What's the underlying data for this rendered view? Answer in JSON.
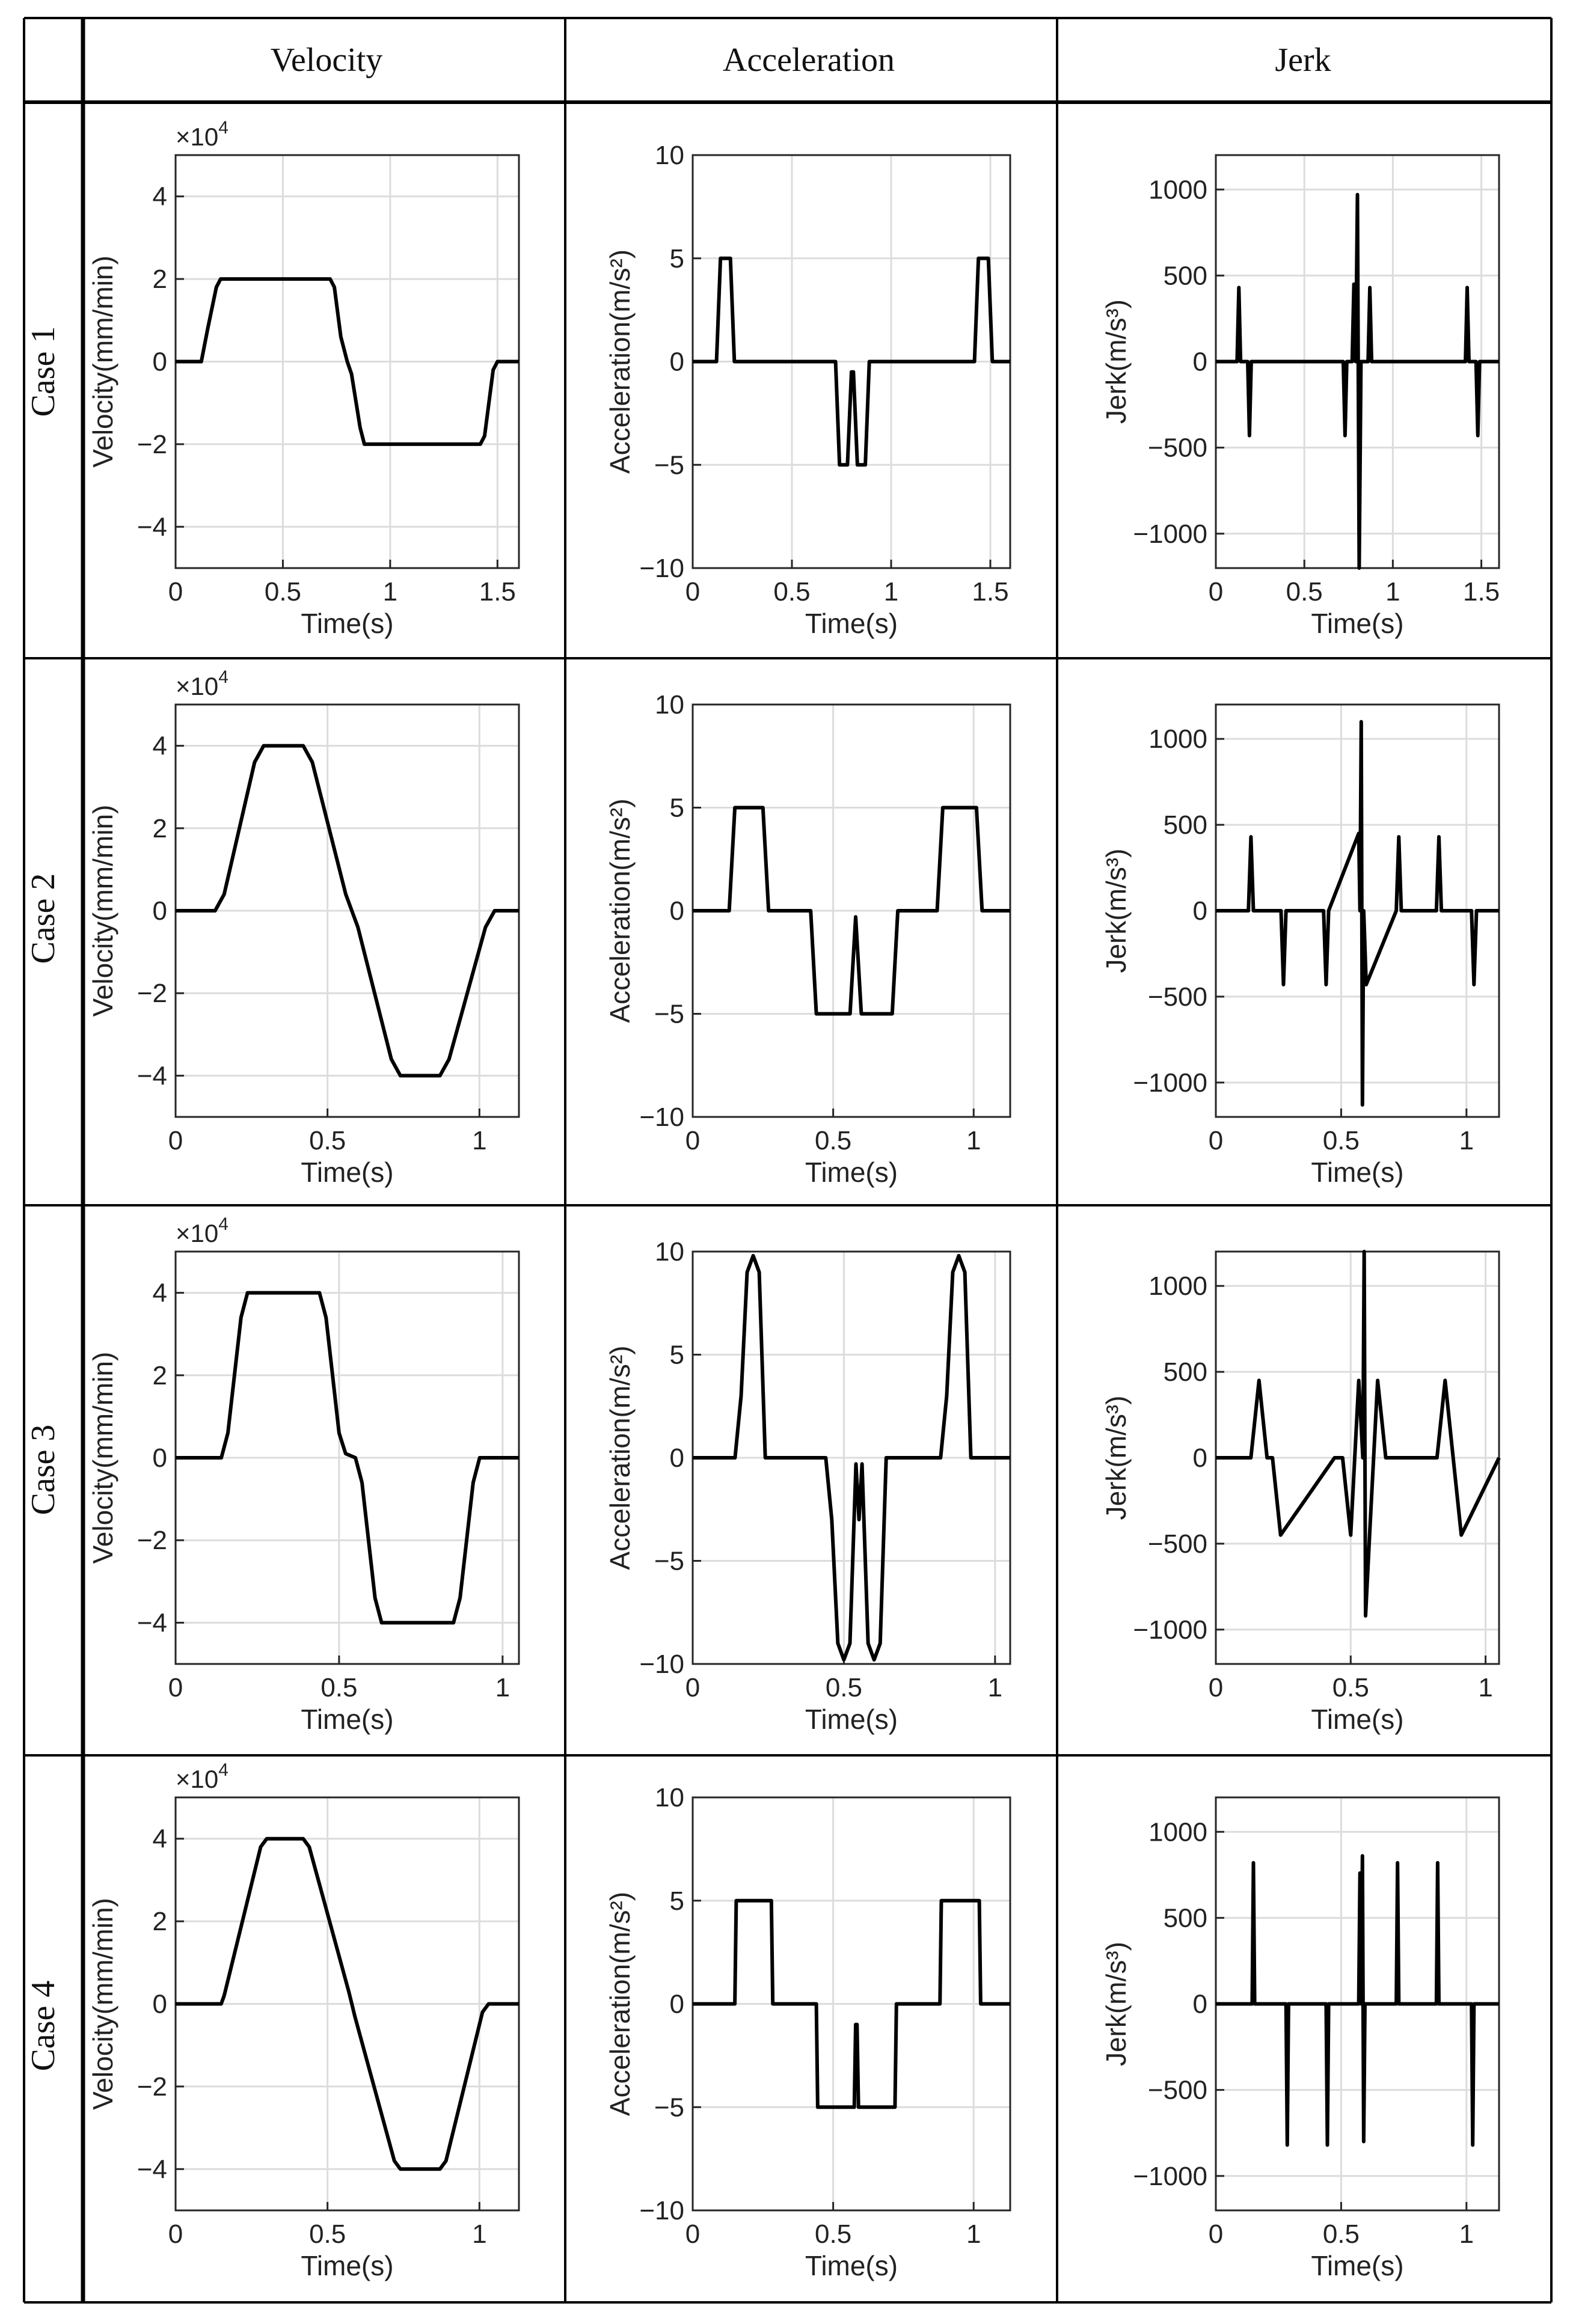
{
  "table": {
    "columns": [
      "Velocity",
      "Acceleration",
      "Jerk"
    ],
    "rows": [
      "Case 1",
      "Case 2",
      "Case 3",
      "Case 4"
    ]
  },
  "colors": {
    "line": "#000000",
    "grid": "#dcdcdc",
    "border": "#000000"
  },
  "chart_data": [
    {
      "id": "c1-vel",
      "type": "line",
      "case": "Case 1",
      "column": "Velocity",
      "xlabel": "Time(s)",
      "ylabel": "Velocity(mm/min)",
      "scale_note": "×10",
      "scale_exp": "4",
      "xlim": [
        0,
        1.6
      ],
      "xticks": [
        0,
        0.5,
        1,
        1.5
      ],
      "xtick_labels": [
        "0",
        "0.5",
        "1",
        "1.5"
      ],
      "ylim": [
        -5,
        5
      ],
      "yticks": [
        -4,
        -2,
        0,
        2,
        4
      ],
      "ytick_labels": [
        "−4",
        "−2",
        "0",
        "2",
        "4"
      ],
      "series": [
        {
          "name": "velocity",
          "x": [
            0,
            0.12,
            0.15,
            0.19,
            0.21,
            0.72,
            0.74,
            0.77,
            0.8,
            0.82,
            0.86,
            0.88,
            1.42,
            1.44,
            1.48,
            1.5,
            1.6
          ],
          "y": [
            0,
            0,
            0.8,
            1.8,
            2,
            2,
            1.8,
            0.6,
            0,
            -0.3,
            -1.6,
            -2,
            -2,
            -1.8,
            -0.2,
            0,
            0
          ]
        }
      ]
    },
    {
      "id": "c1-acc",
      "type": "line",
      "case": "Case 1",
      "column": "Acceleration",
      "xlabel": "Time(s)",
      "ylabel": "Acceleration(m/s²)",
      "xlim": [
        0,
        1.6
      ],
      "xticks": [
        0,
        0.5,
        1,
        1.5
      ],
      "xtick_labels": [
        "0",
        "0.5",
        "1",
        "1.5"
      ],
      "ylim": [
        -10,
        10
      ],
      "yticks": [
        -10,
        -5,
        0,
        5,
        10
      ],
      "ytick_labels": [
        "−10",
        "−5",
        "0",
        "5",
        "10"
      ],
      "series": [
        {
          "name": "acceleration",
          "x": [
            0,
            0.12,
            0.14,
            0.19,
            0.21,
            0.72,
            0.74,
            0.78,
            0.8,
            0.81,
            0.83,
            0.87,
            0.89,
            1.42,
            1.44,
            1.49,
            1.51,
            1.6
          ],
          "y": [
            0,
            0,
            5,
            5,
            0,
            0,
            -5,
            -5,
            -0.5,
            -0.5,
            -5,
            -5,
            0,
            0,
            5,
            5,
            0,
            0
          ]
        }
      ]
    },
    {
      "id": "c1-jerk",
      "type": "line",
      "case": "Case 1",
      "column": "Jerk",
      "xlabel": "Time(s)",
      "ylabel": "Jerk(m/s³)",
      "xlim": [
        0,
        1.6
      ],
      "xticks": [
        0,
        0.5,
        1,
        1.5
      ],
      "xtick_labels": [
        "0",
        "0.5",
        "1",
        "1.5"
      ],
      "ylim": [
        -1200,
        1200
      ],
      "yticks": [
        -1000,
        -500,
        0,
        500,
        1000
      ],
      "ytick_labels": [
        "−1000",
        "−500",
        "0",
        "500",
        "1000"
      ],
      "series": [
        {
          "name": "jerk",
          "x": [
            0,
            0.12,
            0.13,
            0.14,
            0.18,
            0.19,
            0.2,
            0.72,
            0.73,
            0.74,
            0.77,
            0.78,
            0.79,
            0.8,
            0.81,
            0.82,
            0.83,
            0.86,
            0.87,
            0.88,
            1.41,
            1.42,
            1.43,
            1.47,
            1.48,
            1.49,
            1.6
          ],
          "y": [
            0,
            0,
            430,
            0,
            0,
            -430,
            0,
            0,
            -430,
            0,
            0,
            450,
            0,
            970,
            -1200,
            0,
            0,
            0,
            430,
            0,
            0,
            430,
            0,
            0,
            -430,
            0,
            0
          ]
        }
      ]
    },
    {
      "id": "c2-vel",
      "type": "line",
      "case": "Case 2",
      "column": "Velocity",
      "xlabel": "Time(s)",
      "ylabel": "Velocity(mm/min)",
      "scale_note": "×10",
      "scale_exp": "4",
      "xlim": [
        0,
        1.13
      ],
      "xticks": [
        0,
        0.5,
        1
      ],
      "xtick_labels": [
        "0",
        "0.5",
        "1"
      ],
      "ylim": [
        -5,
        5
      ],
      "yticks": [
        -4,
        -2,
        0,
        2,
        4
      ],
      "ytick_labels": [
        "−4",
        "−2",
        "0",
        "2",
        "4"
      ],
      "series": [
        {
          "name": "velocity",
          "x": [
            0,
            0.13,
            0.16,
            0.26,
            0.29,
            0.42,
            0.45,
            0.56,
            0.58,
            0.6,
            0.71,
            0.74,
            0.87,
            0.9,
            1.02,
            1.05,
            1.13
          ],
          "y": [
            0,
            0,
            0.4,
            3.6,
            4,
            4,
            3.6,
            0.4,
            0,
            -0.4,
            -3.6,
            -4,
            -4,
            -3.6,
            -0.4,
            0,
            0
          ]
        }
      ]
    },
    {
      "id": "c2-acc",
      "type": "line",
      "case": "Case 2",
      "column": "Acceleration",
      "xlabel": "Time(s)",
      "ylabel": "Acceleration(m/s²)",
      "xlim": [
        0,
        1.13
      ],
      "xticks": [
        0,
        0.5,
        1
      ],
      "xtick_labels": [
        "0",
        "0.5",
        "1"
      ],
      "ylim": [
        -10,
        10
      ],
      "yticks": [
        -10,
        -5,
        0,
        5,
        10
      ],
      "ytick_labels": [
        "−10",
        "−5",
        "0",
        "5",
        "10"
      ],
      "series": [
        {
          "name": "acceleration",
          "x": [
            0,
            0.13,
            0.15,
            0.25,
            0.27,
            0.42,
            0.44,
            0.56,
            0.58,
            0.6,
            0.71,
            0.73,
            0.87,
            0.89,
            1.01,
            1.03,
            1.13
          ],
          "y": [
            0,
            0,
            5,
            5,
            0,
            0,
            -5,
            -5,
            -0.3,
            -5,
            -5,
            0,
            0,
            5,
            5,
            0,
            0
          ]
        }
      ]
    },
    {
      "id": "c2-jerk",
      "type": "line",
      "case": "Case 2",
      "column": "Jerk",
      "xlabel": "Time(s)",
      "ylabel": "Jerk(m/s³)",
      "xlim": [
        0,
        1.13
      ],
      "xticks": [
        0,
        0.5,
        1
      ],
      "xtick_labels": [
        "0",
        "0.5",
        "1"
      ],
      "ylim": [
        -1200,
        1200
      ],
      "yticks": [
        -1000,
        -500,
        0,
        500,
        1000
      ],
      "ytick_labels": [
        "−1000",
        "−500",
        "0",
        "500",
        "1000"
      ],
      "series": [
        {
          "name": "jerk",
          "x": [
            0,
            0.13,
            0.14,
            0.15,
            0.26,
            0.27,
            0.28,
            0.43,
            0.44,
            0.45,
            0.57,
            0.575,
            0.58,
            0.585,
            0.59,
            0.6,
            0.72,
            0.73,
            0.74,
            0.88,
            0.89,
            0.9,
            1.02,
            1.03,
            1.04,
            1.13
          ],
          "y": [
            0,
            0,
            430,
            0,
            0,
            -430,
            0,
            0,
            -430,
            0,
            450,
            0,
            1100,
            -1130,
            0,
            -430,
            0,
            430,
            0,
            0,
            430,
            0,
            0,
            -430,
            0,
            0
          ]
        }
      ]
    },
    {
      "id": "c3-vel",
      "type": "line",
      "case": "Case 3",
      "column": "Velocity",
      "xlabel": "Time(s)",
      "ylabel": "Velocity(mm/min)",
      "scale_note": "×10",
      "scale_exp": "4",
      "xlim": [
        0,
        1.05
      ],
      "xticks": [
        0,
        0.5,
        1
      ],
      "xtick_labels": [
        "0",
        "0.5",
        "1"
      ],
      "ylim": [
        -5,
        5
      ],
      "yticks": [
        -4,
        -2,
        0,
        2,
        4
      ],
      "ytick_labels": [
        "−4",
        "−2",
        "0",
        "2",
        "4"
      ],
      "series": [
        {
          "name": "velocity",
          "x": [
            0,
            0.14,
            0.16,
            0.2,
            0.22,
            0.44,
            0.46,
            0.5,
            0.52,
            0.55,
            0.57,
            0.61,
            0.63,
            0.85,
            0.87,
            0.91,
            0.93,
            1.05
          ],
          "y": [
            0,
            0,
            0.6,
            3.4,
            4,
            4,
            3.4,
            0.6,
            0.1,
            0,
            -0.6,
            -3.4,
            -4,
            -4,
            -3.4,
            -0.6,
            0,
            0
          ]
        }
      ]
    },
    {
      "id": "c3-acc",
      "type": "line",
      "case": "Case 3",
      "column": "Acceleration",
      "xlabel": "Time(s)",
      "ylabel": "Acceleration(m/s²)",
      "xlim": [
        0,
        1.05
      ],
      "xticks": [
        0,
        0.5,
        1
      ],
      "xtick_labels": [
        "0",
        "0.5",
        "1"
      ],
      "ylim": [
        -10,
        10
      ],
      "yticks": [
        -10,
        -5,
        0,
        5,
        10
      ],
      "ytick_labels": [
        "−10",
        "−5",
        "0",
        "5",
        "10"
      ],
      "series": [
        {
          "name": "acceleration",
          "x": [
            0,
            0.14,
            0.16,
            0.18,
            0.2,
            0.22,
            0.24,
            0.44,
            0.46,
            0.48,
            0.5,
            0.52,
            0.54,
            0.55,
            0.56,
            0.58,
            0.6,
            0.62,
            0.64,
            0.82,
            0.84,
            0.86,
            0.88,
            0.9,
            0.92,
            1.05
          ],
          "y": [
            0,
            0,
            3,
            9,
            9.8,
            9,
            0,
            0,
            -3,
            -9,
            -9.8,
            -9,
            -0.3,
            -3,
            -0.3,
            -9,
            -9.8,
            -9,
            0,
            0,
            3,
            9,
            9.8,
            9,
            0,
            0
          ]
        }
      ]
    },
    {
      "id": "c3-jerk",
      "type": "line",
      "case": "Case 3",
      "column": "Jerk",
      "xlabel": "Time(s)",
      "ylabel": "Jerk(m/s³)",
      "xlim": [
        0,
        1.05
      ],
      "xticks": [
        0,
        0.5,
        1
      ],
      "xtick_labels": [
        "0",
        "0.5",
        "1"
      ],
      "ylim": [
        -1200,
        1200
      ],
      "yticks": [
        -1000,
        -500,
        0,
        500,
        1000
      ],
      "ytick_labels": [
        "−1000",
        "−500",
        "0",
        "500",
        "1000"
      ],
      "series": [
        {
          "name": "jerk",
          "x": [
            0,
            0.13,
            0.16,
            0.19,
            0.21,
            0.24,
            0.44,
            0.47,
            0.5,
            0.53,
            0.545,
            0.55,
            0.555,
            0.57,
            0.6,
            0.63,
            0.66,
            0.82,
            0.85,
            0.88,
            0.91,
            1.05
          ],
          "y": [
            0,
            0,
            450,
            0,
            0,
            -450,
            0,
            0,
            -450,
            450,
            0,
            1200,
            -920,
            -450,
            450,
            0,
            0,
            0,
            450,
            0,
            -450,
            0
          ]
        }
      ]
    },
    {
      "id": "c4-vel",
      "type": "line",
      "case": "Case 4",
      "column": "Velocity",
      "xlabel": "Time(s)",
      "ylabel": "Velocity(mm/min)",
      "scale_note": "×10",
      "scale_exp": "4",
      "xlim": [
        0,
        1.13
      ],
      "xticks": [
        0,
        0.5,
        1
      ],
      "xtick_labels": [
        "0",
        "0.5",
        "1"
      ],
      "ylim": [
        -5,
        5
      ],
      "yticks": [
        -4,
        -2,
        0,
        2,
        4
      ],
      "ytick_labels": [
        "−4",
        "−2",
        "0",
        "2",
        "4"
      ],
      "series": [
        {
          "name": "velocity",
          "x": [
            0,
            0.15,
            0.16,
            0.28,
            0.3,
            0.42,
            0.44,
            0.57,
            0.58,
            0.59,
            0.72,
            0.74,
            0.87,
            0.89,
            1.01,
            1.03,
            1.13
          ],
          "y": [
            0,
            0,
            0.2,
            3.8,
            4,
            4,
            3.8,
            0.3,
            0,
            -0.3,
            -3.8,
            -4,
            -4,
            -3.8,
            -0.2,
            0,
            0
          ]
        }
      ]
    },
    {
      "id": "c4-acc",
      "type": "line",
      "case": "Case 4",
      "column": "Acceleration",
      "xlabel": "Time(s)",
      "ylabel": "Acceleration(m/s²)",
      "xlim": [
        0,
        1.13
      ],
      "xticks": [
        0,
        0.5,
        1
      ],
      "xtick_labels": [
        "0",
        "0.5",
        "1"
      ],
      "ylim": [
        -10,
        10
      ],
      "yticks": [
        -10,
        -5,
        0,
        5,
        10
      ],
      "ytick_labels": [
        "−10",
        "−5",
        "0",
        "5",
        "10"
      ],
      "series": [
        {
          "name": "acceleration",
          "x": [
            0,
            0.15,
            0.155,
            0.28,
            0.285,
            0.44,
            0.445,
            0.575,
            0.58,
            0.585,
            0.59,
            0.72,
            0.725,
            0.88,
            0.885,
            1.02,
            1.025,
            1.13
          ],
          "y": [
            0,
            0,
            5,
            5,
            0,
            0,
            -5,
            -5,
            -1,
            -1,
            -5,
            -5,
            0,
            0,
            5,
            5,
            0,
            0
          ]
        }
      ]
    },
    {
      "id": "c4-jerk",
      "type": "line",
      "case": "Case 4",
      "column": "Jerk",
      "xlabel": "Time(s)",
      "ylabel": "Jerk(m/s³)",
      "xlim": [
        0,
        1.13
      ],
      "xticks": [
        0,
        0.5,
        1
      ],
      "xtick_labels": [
        "0",
        "0.5",
        "1"
      ],
      "ylim": [
        -1200,
        1200
      ],
      "yticks": [
        -1000,
        -500,
        0,
        500,
        1000
      ],
      "ytick_labels": [
        "−1000",
        "−500",
        "0",
        "500",
        "1000"
      ],
      "series": [
        {
          "name": "jerk",
          "x": [
            0,
            0.145,
            0.15,
            0.155,
            0.28,
            0.285,
            0.29,
            0.44,
            0.445,
            0.45,
            0.57,
            0.575,
            0.58,
            0.585,
            0.59,
            0.595,
            0.6,
            0.72,
            0.725,
            0.73,
            0.88,
            0.885,
            0.89,
            1.02,
            1.025,
            1.03,
            1.13
          ],
          "y": [
            0,
            0,
            820,
            0,
            0,
            -820,
            0,
            0,
            -820,
            0,
            0,
            760,
            0,
            860,
            -800,
            0,
            0,
            0,
            820,
            0,
            0,
            820,
            0,
            0,
            -820,
            0,
            0
          ]
        }
      ]
    }
  ]
}
